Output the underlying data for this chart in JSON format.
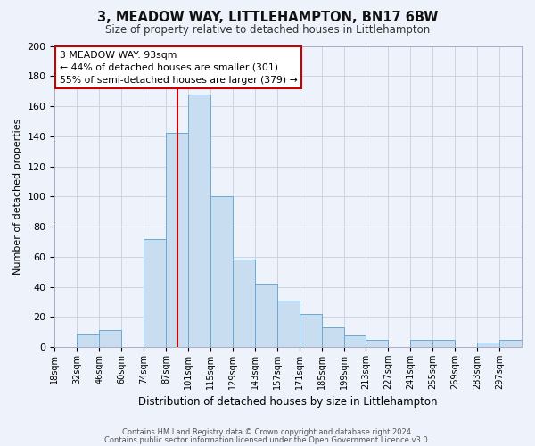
{
  "title": "3, MEADOW WAY, LITTLEHAMPTON, BN17 6BW",
  "subtitle": "Size of property relative to detached houses in Littlehampton",
  "xlabel": "Distribution of detached houses by size in Littlehampton",
  "ylabel": "Number of detached properties",
  "bar_color": "#c8ddf0",
  "bar_edge_color": "#6aaad4",
  "background_color": "#eef2fb",
  "grid_color": "#c8cfe0",
  "bin_labels": [
    "18sqm",
    "32sqm",
    "46sqm",
    "60sqm",
    "74sqm",
    "87sqm",
    "101sqm",
    "115sqm",
    "129sqm",
    "143sqm",
    "157sqm",
    "171sqm",
    "185sqm",
    "199sqm",
    "213sqm",
    "227sqm",
    "241sqm",
    "255sqm",
    "269sqm",
    "283sqm",
    "297sqm"
  ],
  "bin_positions": [
    0,
    1,
    2,
    3,
    4,
    5,
    6,
    7,
    8,
    9,
    10,
    11,
    12,
    13,
    14,
    15,
    16,
    17,
    18,
    19,
    20
  ],
  "bar_heights": [
    0,
    9,
    11,
    0,
    72,
    142,
    168,
    100,
    58,
    42,
    31,
    22,
    13,
    8,
    5,
    0,
    5,
    5,
    0,
    3,
    5
  ],
  "vline_pos": 5.5,
  "vline_color": "#cc0000",
  "ylim": [
    0,
    200
  ],
  "yticks": [
    0,
    20,
    40,
    60,
    80,
    100,
    120,
    140,
    160,
    180,
    200
  ],
  "annotation_title": "3 MEADOW WAY: 93sqm",
  "annotation_line1": "← 44% of detached houses are smaller (301)",
  "annotation_line2": "55% of semi-detached houses are larger (379) →",
  "annotation_box_color": "#ffffff",
  "annotation_box_edge_color": "#cc0000",
  "footer_line1": "Contains HM Land Registry data © Crown copyright and database right 2024.",
  "footer_line2": "Contains public sector information licensed under the Open Government Licence v3.0."
}
